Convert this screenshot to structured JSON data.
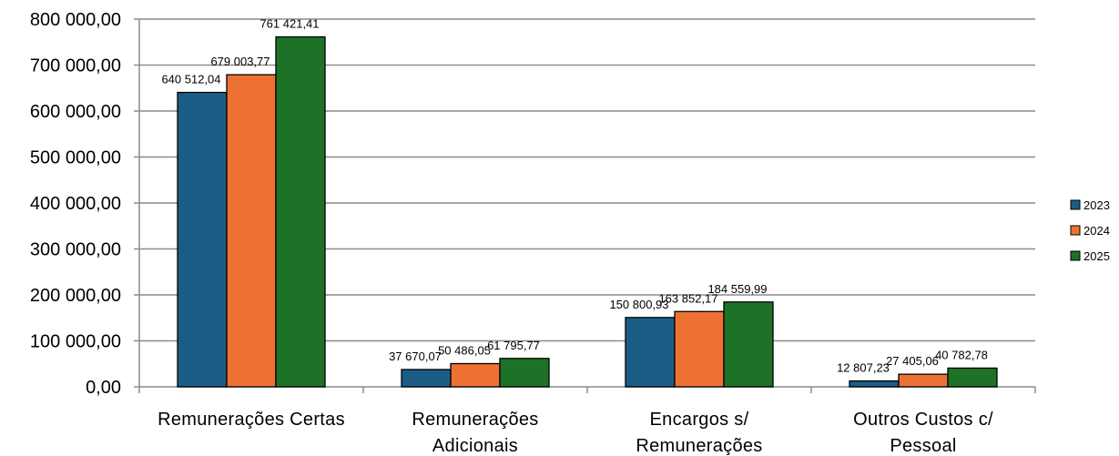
{
  "chart_data": {
    "type": "bar",
    "title": "",
    "xlabel": "",
    "ylabel": "",
    "ylim": [
      0,
      800000
    ],
    "ytick_step": 100000,
    "yticks": [
      "0,00",
      "100 000,00",
      "200 000,00",
      "300 000,00",
      "400 000,00",
      "500 000,00",
      "600 000,00",
      "700 000,00",
      "800 000,00"
    ],
    "grid": true,
    "legend_position": "right",
    "categories": [
      [
        "Remunerações Certas"
      ],
      [
        "Remunerações",
        "Adicionais"
      ],
      [
        "Encargos s/",
        "Remunerações"
      ],
      [
        "Outros Custos c/",
        "Pessoal"
      ]
    ],
    "series": [
      {
        "name": "2023",
        "color": "#1a5e87",
        "values": [
          640512.04,
          37670.07,
          150800.93,
          12807.23
        ],
        "labels": [
          "640 512,04",
          "37 670,07",
          "150 800,93",
          "12 807,23"
        ]
      },
      {
        "name": "2024",
        "color": "#ed7132",
        "values": [
          679003.77,
          50486.05,
          163852.17,
          27405.06
        ],
        "labels": [
          "679 003,77",
          "50 486,05",
          "163 852,17",
          "27 405,06"
        ]
      },
      {
        "name": "2025",
        "color": "#1e7227",
        "values": [
          761421.41,
          61795.77,
          184559.99,
          40782.78
        ],
        "labels": [
          "761 421,41",
          "61 795,77",
          "184 559,99",
          "40 782,78"
        ]
      }
    ]
  }
}
